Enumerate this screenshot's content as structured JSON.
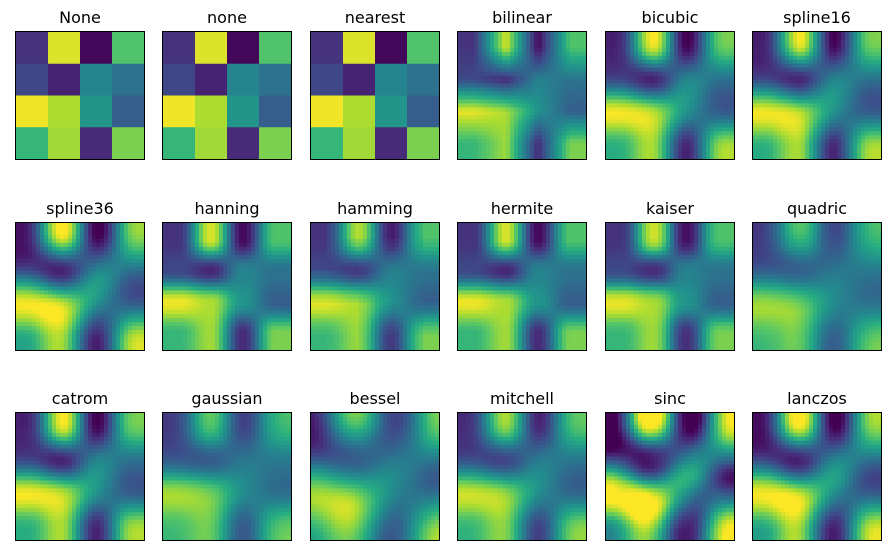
{
  "chart_data": {
    "type": "heatmap",
    "colormap": "viridis",
    "grid": false,
    "axes_ticks": false,
    "layout": {
      "rows": 3,
      "cols": 6
    },
    "matrix": [
      [
        0.15,
        0.95,
        0.02,
        0.72
      ],
      [
        0.22,
        0.1,
        0.45,
        0.38
      ],
      [
        0.98,
        0.88,
        0.52,
        0.3
      ],
      [
        0.66,
        0.86,
        0.12,
        0.8
      ]
    ],
    "panels": [
      {
        "title": "None",
        "interpolation": "nearest"
      },
      {
        "title": "none",
        "interpolation": "nearest"
      },
      {
        "title": "nearest",
        "interpolation": "nearest"
      },
      {
        "title": "bilinear",
        "interpolation": "bilinear"
      },
      {
        "title": "bicubic",
        "interpolation": "bicubic"
      },
      {
        "title": "spline16",
        "interpolation": "spline16"
      },
      {
        "title": "spline36",
        "interpolation": "spline36"
      },
      {
        "title": "hanning",
        "interpolation": "hanning"
      },
      {
        "title": "hamming",
        "interpolation": "hamming"
      },
      {
        "title": "hermite",
        "interpolation": "hermite"
      },
      {
        "title": "kaiser",
        "interpolation": "kaiser"
      },
      {
        "title": "quadric",
        "interpolation": "quadric"
      },
      {
        "title": "catrom",
        "interpolation": "catrom"
      },
      {
        "title": "gaussian",
        "interpolation": "gaussian"
      },
      {
        "title": "bessel",
        "interpolation": "bessel"
      },
      {
        "title": "mitchell",
        "interpolation": "mitchell"
      },
      {
        "title": "sinc",
        "interpolation": "sinc"
      },
      {
        "title": "lanczos",
        "interpolation": "lanczos"
      }
    ]
  }
}
